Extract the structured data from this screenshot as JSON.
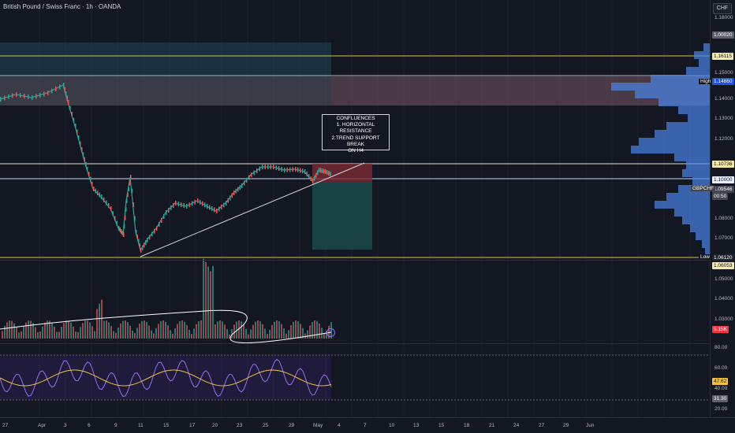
{
  "symbol_title": "British Pound / Swiss Franc · 1h · OANDA",
  "currency_button": "CHF",
  "annotation": {
    "lines": [
      "CONFLUENCES",
      "1. HORIZONTAL",
      "RESISTANCE",
      "2.TREND SUPPORT BREAK",
      "ON H4"
    ]
  },
  "colors": {
    "background": "#131722",
    "upper_zone": "#1f3a4a",
    "resistance_zone": "#5a5a66",
    "target_zone": "#1a4a4a",
    "stop_zone": "#7a2a35",
    "yellow_line": "#d4c34a",
    "volume_profile": "#4a86e8",
    "ma_line": "#ffffff",
    "rsi_line": "#9b6cf5",
    "rsi_ma": "#f0c040"
  },
  "price_scale": {
    "ticks": [
      "1.18000",
      "1.15000",
      "1.14000",
      "1.13000",
      "1.12000",
      "1.10000",
      "1.08000",
      "1.07000",
      "1.05000",
      "1.04000",
      "1.03000"
    ],
    "tags": {
      "top": "1.00020",
      "level1": "1.16115",
      "high_label": "High",
      "high_value": "1.14860",
      "level2": "1.10736",
      "level3": "1.10000",
      "symbol": "GBPCHF",
      "last": "1.09546",
      "countdown": "00:50",
      "low_label": "Low",
      "low_value": "1.06120",
      "level4": "1.06053",
      "volume": "5.15K",
      "volume2": "1.36K"
    }
  },
  "rsi_scale": {
    "ticks": [
      "80.00",
      "60.00",
      "40.00",
      "20.00"
    ],
    "value1": "47.62",
    "value2": "31.30"
  },
  "time_axis": [
    "27",
    "Apr",
    "3",
    "6",
    "9",
    "11",
    "15",
    "17",
    "20",
    "23",
    "25",
    "29",
    "May",
    "4",
    "7",
    "10",
    "13",
    "15",
    "18",
    "21",
    "24",
    "27",
    "29",
    "Jun"
  ],
  "lightning_icon": "lightning-icon"
}
